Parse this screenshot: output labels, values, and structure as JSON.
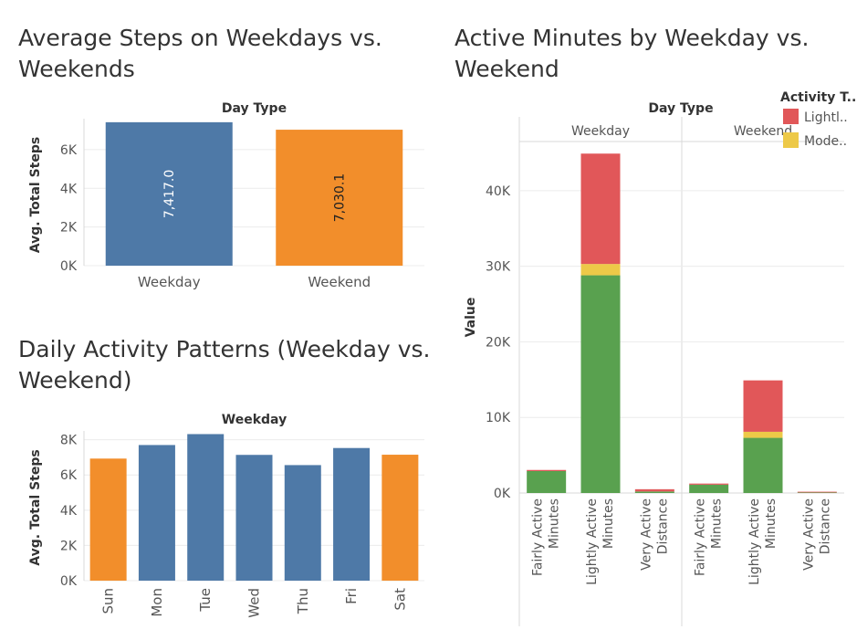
{
  "colors": {
    "weekday": "#4e79a7",
    "weekend": "#f28e2b",
    "lightly": "#e15759",
    "moderately": "#edc948",
    "green": "#59a14f",
    "grid": "#ececec",
    "axis": "#d8d8d8",
    "text": "#555555"
  },
  "chart_data": [
    {
      "type": "bar",
      "title_line1": "Average Steps on Weekdays vs.",
      "title_line2": "Weekends",
      "header": "Day Type",
      "ylabel": "Avg. Total Steps",
      "categories": [
        "Weekday",
        "Weekend"
      ],
      "values": [
        7417.0,
        7030.1
      ],
      "labels": [
        "7,417.0",
        "7,030.1"
      ],
      "ylim": [
        0,
        7600
      ],
      "yticks": [
        0,
        2000,
        4000,
        6000
      ],
      "ytick_labels": [
        "0K",
        "2K",
        "4K",
        "6K"
      ]
    },
    {
      "type": "bar",
      "title_line1": "Daily Activity Patterns (Weekday vs.",
      "title_line2": "Weekend)",
      "header": "Weekday",
      "ylabel": "Avg. Total Steps",
      "categories": [
        "Sun",
        "Mon",
        "Tue",
        "Wed",
        "Thu",
        "Fri",
        "Sat"
      ],
      "values": [
        6930,
        7700,
        8320,
        7140,
        6560,
        7530,
        7150
      ],
      "is_weekend": [
        true,
        false,
        false,
        false,
        false,
        false,
        true
      ],
      "ylim": [
        0,
        8500
      ],
      "yticks": [
        0,
        2000,
        4000,
        6000,
        8000
      ],
      "ytick_labels": [
        "0K",
        "2K",
        "4K",
        "6K",
        "8K"
      ]
    },
    {
      "type": "bar",
      "stacked": true,
      "title_line1": "Active Minutes by Weekday vs.",
      "title_line2": "Weekend",
      "header": "Day Type",
      "ylabel": "Value",
      "panels": [
        "Weekday",
        "Weekend"
      ],
      "categories": [
        "Fairly Active Minutes",
        "Lightly Active Minutes",
        "Very Active Distance"
      ],
      "category_lines": [
        [
          "Fairly Active",
          "Minutes"
        ],
        [
          "Lightly Active",
          "Minutes"
        ],
        [
          "Very Active",
          "Distance"
        ]
      ],
      "series": [
        {
          "color_key": "green",
          "values": [
            [
              2900,
              28800,
              200
            ],
            [
              1100,
              7300,
              70
            ]
          ]
        },
        {
          "color_key": "moderately",
          "values": [
            [
              0,
              1500,
              0
            ],
            [
              0,
              800,
              0
            ]
          ]
        },
        {
          "color_key": "lightly",
          "values": [
            [
              150,
              14600,
              300
            ],
            [
              150,
              6800,
              100
            ]
          ]
        }
      ],
      "ylim": [
        0,
        46500
      ],
      "yticks": [
        0,
        10000,
        20000,
        30000,
        40000
      ],
      "ytick_labels": [
        "0K",
        "10K",
        "20K",
        "30K",
        "40K"
      ],
      "legend": {
        "title": "Activity T..",
        "items": [
          {
            "label": "Lightl..",
            "color_key": "lightly"
          },
          {
            "label": "Mode..",
            "color_key": "moderately"
          }
        ]
      }
    }
  ]
}
